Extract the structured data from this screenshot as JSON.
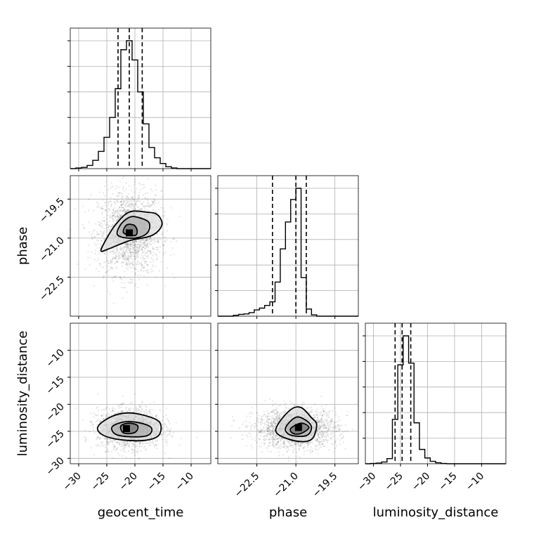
{
  "chart_data": {
    "type": "corner",
    "parameters": [
      "geocent_time",
      "phase",
      "luminosity_distance"
    ],
    "grid": true,
    "quantile_lines": "dashed",
    "histograms": [
      {
        "parameter": "geocent_time",
        "xlim": [
          -31.5,
          -6.5
        ],
        "bin_edges": [
          -31.5,
          -30.5,
          -29.5,
          -28.5,
          -27.5,
          -26.5,
          -25.5,
          -24.5,
          -23.5,
          -22.5,
          -21.5,
          -20.5,
          -19.5,
          -18.5,
          -17.5,
          -16.5,
          -15.5,
          -14.5,
          -13.5,
          -12.5,
          -11.5,
          -10.5,
          -9.5,
          -8.5,
          -7.5,
          -6.5
        ],
        "counts": [
          0,
          1,
          2,
          5,
          13,
          27,
          49,
          80,
          125,
          186,
          200,
          170,
          120,
          70,
          33,
          17,
          8,
          3,
          1,
          0,
          0,
          0,
          0,
          0,
          0
        ],
        "quantiles": [
          -23.0,
          -21.0,
          -18.7
        ]
      },
      {
        "parameter": "phase",
        "xlim": [
          -24.0,
          -18.6
        ],
        "bin_edges": [
          -24.0,
          -23.8,
          -23.6,
          -23.4,
          -23.2,
          -23.0,
          -22.8,
          -22.6,
          -22.4,
          -22.2,
          -22.0,
          -21.8,
          -21.6,
          -21.4,
          -21.2,
          -21.0,
          -20.8,
          -20.6,
          -20.4,
          -20.2,
          -20.0,
          -19.8,
          -19.6,
          -19.4,
          -19.2,
          -19.0,
          -18.8,
          -18.6
        ],
        "counts": [
          0,
          0,
          0,
          2,
          4,
          5,
          8,
          14,
          18,
          24,
          32,
          76,
          150,
          210,
          260,
          285,
          86,
          16,
          3,
          0,
          0,
          0,
          0,
          0,
          0,
          0,
          0
        ],
        "quantiles": [
          -21.9,
          -21.0,
          -20.6
        ]
      },
      {
        "parameter": "luminosity_distance",
        "xlim": [
          -31.5,
          -5.5
        ],
        "bin_edges": [
          -31.5,
          -30.5,
          -29.5,
          -28.5,
          -27.5,
          -26.5,
          -25.5,
          -24.5,
          -23.5,
          -22.5,
          -21.5,
          -20.5,
          -19.5,
          -18.5,
          -17.5,
          -16.5,
          -15.5,
          -14.5,
          -13.5,
          -12.5,
          -11.5,
          -10.5,
          -9.5,
          -8.5,
          -7.5,
          -6.5,
          -5.5
        ],
        "counts": [
          0,
          1,
          2,
          5,
          15,
          130,
          290,
          375,
          295,
          120,
          42,
          17,
          7,
          3,
          1,
          0,
          0,
          0,
          0,
          0,
          0,
          0,
          0,
          0,
          0,
          0
        ],
        "quantiles": [
          -26.0,
          -24.7,
          -23.1
        ]
      }
    ],
    "scatter_panels": [
      {
        "x": "geocent_time",
        "y": "phase",
        "xlim": [
          -31.5,
          -6.5
        ],
        "ylim": [
          -24.0,
          -18.6
        ],
        "center": [
          -20.9,
          -20.8
        ],
        "spread": [
          2.8,
          0.8
        ],
        "density_peak": [
          -21.0,
          -20.8
        ],
        "contour_levels": [
          {
            "points": [
              [
                -24.5,
                -21.4
              ],
              [
                -21.0,
                -21.1
              ],
              [
                -17.0,
                -20.9
              ],
              [
                -15.2,
                -20.5
              ],
              [
                -16.0,
                -20.1
              ],
              [
                -18.0,
                -20.0
              ],
              [
                -21.0,
                -20.0
              ],
              [
                -23.5,
                -20.5
              ],
              [
                -25.5,
                -21.2
              ],
              [
                -26.0,
                -21.5
              ]
            ]
          },
          {
            "points": [
              [
                -23.0,
                -20.9
              ],
              [
                -20.0,
                -21.0
              ],
              [
                -17.8,
                -20.8
              ],
              [
                -17.5,
                -20.4
              ],
              [
                -19.5,
                -20.2
              ],
              [
                -21.0,
                -20.2
              ],
              [
                -22.6,
                -20.5
              ]
            ]
          },
          {
            "points": [
              [
                -22.0,
                -20.8
              ],
              [
                -20.0,
                -20.9
              ],
              [
                -19.6,
                -20.7
              ],
              [
                -20.2,
                -20.5
              ],
              [
                -21.5,
                -20.5
              ]
            ]
          }
        ]
      },
      {
        "x": "geocent_time",
        "y": "luminosity_distance",
        "xlim": [
          -31.5,
          -6.5
        ],
        "ylim": [
          -31.0,
          -5.0
        ],
        "center": [
          -21.0,
          -24.5
        ],
        "spread": [
          2.8,
          1.8
        ],
        "density_peak": [
          -21.5,
          -24.5
        ],
        "contour_levels": [
          {
            "points": [
              [
                -26.5,
                -24.0
              ],
              [
                -24.0,
                -22.2
              ],
              [
                -21.0,
                -21.6
              ],
              [
                -17.5,
                -22.3
              ],
              [
                -15.5,
                -23.5
              ],
              [
                -15.8,
                -25.8
              ],
              [
                -18.5,
                -26.7
              ],
              [
                -23.0,
                -26.5
              ],
              [
                -26.0,
                -25.5
              ]
            ]
          },
          {
            "points": [
              [
                -24.0,
                -24.1
              ],
              [
                -21.5,
                -23.2
              ],
              [
                -18.5,
                -23.6
              ],
              [
                -17.0,
                -24.5
              ],
              [
                -17.8,
                -25.8
              ],
              [
                -21.0,
                -26.0
              ],
              [
                -23.5,
                -25.5
              ]
            ]
          },
          {
            "points": [
              [
                -22.5,
                -24.0
              ],
              [
                -21.0,
                -23.5
              ],
              [
                -19.5,
                -24.0
              ],
              [
                -20.0,
                -25.2
              ],
              [
                -22.0,
                -25.3
              ]
            ]
          }
        ]
      },
      {
        "x": "phase",
        "y": "luminosity_distance",
        "xlim": [
          -24.0,
          -18.6
        ],
        "ylim": [
          -31.0,
          -5.0
        ],
        "center": [
          -21.0,
          -24.5
        ],
        "spread": [
          0.8,
          1.8
        ],
        "density_peak": [
          -20.9,
          -24.3
        ],
        "contour_levels": [
          {
            "points": [
              [
                -21.7,
                -23.8
              ],
              [
                -21.2,
                -21.0
              ],
              [
                -20.8,
                -20.6
              ],
              [
                -20.4,
                -22.5
              ],
              [
                -20.2,
                -23.8
              ],
              [
                -20.4,
                -26.5
              ],
              [
                -21.0,
                -26.8
              ],
              [
                -21.7,
                -25.5
              ]
            ]
          },
          {
            "points": [
              [
                -21.4,
                -24.4
              ],
              [
                -21.0,
                -22.4
              ],
              [
                -20.6,
                -23.0
              ],
              [
                -20.4,
                -24.3
              ],
              [
                -20.6,
                -25.8
              ],
              [
                -21.2,
                -25.7
              ]
            ]
          },
          {
            "points": [
              [
                -21.2,
                -24.5
              ],
              [
                -20.8,
                -23.5
              ],
              [
                -20.5,
                -24.3
              ],
              [
                -20.8,
                -25.4
              ],
              [
                -21.1,
                -25.4
              ]
            ]
          }
        ]
      }
    ],
    "tick_labels": {
      "geocent_time_x": [
        "−30",
        "−25",
        "−20",
        "−15",
        "−10"
      ],
      "phase_y": [
        "−19.5",
        "−21.0",
        "−22.5"
      ],
      "phase_x": [
        "−22.5",
        "−21.0",
        "−19.5"
      ],
      "luminosity_distance_y": [
        "−10",
        "−15",
        "−20",
        "−25",
        "−30"
      ],
      "luminosity_distance_x": [
        "−30",
        "−25",
        "−20",
        "−15",
        "−10"
      ]
    }
  }
}
